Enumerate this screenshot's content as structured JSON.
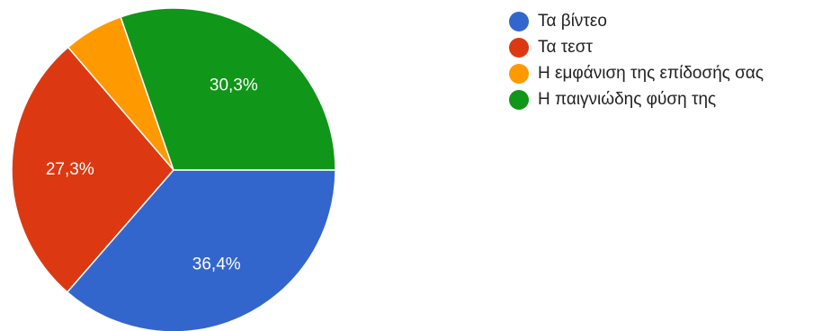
{
  "chart_data": {
    "type": "pie",
    "categories": [
      "Τα βίντεο",
      "Τα τεστ",
      "Η εμφάνιση της επίδοσής σας",
      "Η παιγνιώδης φύση της"
    ],
    "values": [
      36.4,
      27.3,
      6.0,
      30.3
    ],
    "data_labels": [
      "36,4%",
      "27,3%",
      "",
      "30,3%"
    ],
    "colors": [
      "#3366cc",
      "#dc3912",
      "#ff9900",
      "#109618"
    ],
    "legend_position": "right",
    "start": "3 o'clock, clockwise"
  },
  "legend": [
    {
      "label": "Τα βίντεο",
      "color": "#3366cc"
    },
    {
      "label": "Τα τεστ",
      "color": "#dc3912"
    },
    {
      "label": "Η εμφάνιση της επίδοσής σας",
      "color": "#ff9900"
    },
    {
      "label": "Η παιγνιώδης φύση της",
      "color": "#109618"
    }
  ]
}
